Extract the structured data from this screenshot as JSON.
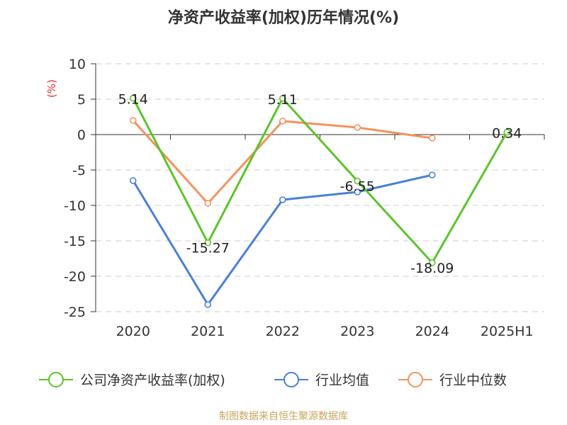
{
  "chart_data": {
    "type": "line",
    "title": "净资产收益率(加权)历年情况(%)",
    "ylabel": "(%)",
    "xlabel": "",
    "ylim": [
      -25,
      10
    ],
    "yticks": [
      10,
      5,
      0,
      -5,
      -10,
      -15,
      -20,
      -25
    ],
    "categories": [
      "2020",
      "2021",
      "2022",
      "2023",
      "2024",
      "2025H1"
    ],
    "grid": true,
    "legend_position": "bottom",
    "series": [
      {
        "name": "公司净资产收益率(加权)",
        "color": "#5cc42b",
        "values": [
          5.14,
          -15.27,
          5.11,
          -6.55,
          -18.09,
          0.34
        ],
        "labels": [
          "5.14",
          "-15.27",
          "5.11",
          "-6.55",
          "-18.09",
          "0.34"
        ]
      },
      {
        "name": "行业均值",
        "color": "#4a7fd8",
        "values": [
          -6.5,
          -24.0,
          -9.2,
          -8.1,
          -5.7,
          null
        ]
      },
      {
        "name": "行业中位数",
        "color": "#f5925c",
        "values": [
          2.0,
          -9.7,
          1.9,
          1.0,
          -0.5,
          null
        ]
      }
    ]
  },
  "source_text": "制图数据来自恒生聚源数据库",
  "colors": {
    "source": "#c9a45c",
    "ylabel": "#e03030",
    "axis": "#333333",
    "grid": "#cccccc"
  }
}
